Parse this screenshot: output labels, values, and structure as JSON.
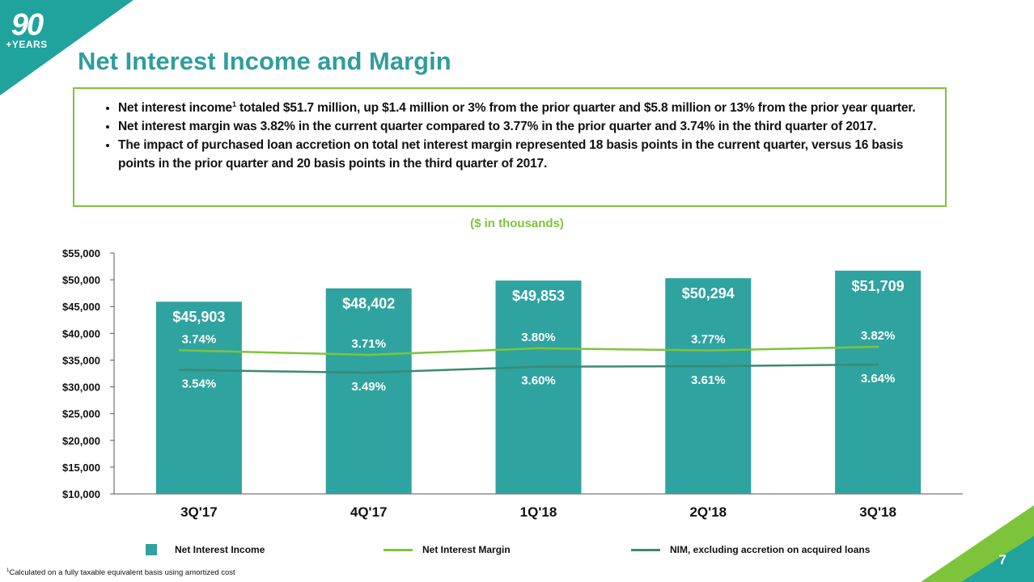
{
  "logo": {
    "number": "90",
    "text": "+YEARS"
  },
  "title": "Net Interest Income and Margin",
  "bullets": [
    {
      "pre": "Net interest income",
      "sup": "1",
      "post": " totaled $51.7 million, up $1.4 million or 3% from the prior quarter and $5.8 million or 13% from the prior year quarter."
    },
    {
      "pre": "Net interest margin was 3.82% in the current quarter compared to 3.77% in the prior quarter and 3.74% in the third quarter of 2017.",
      "sup": "",
      "post": ""
    },
    {
      "pre": "The impact of purchased loan accretion on total net interest margin represented 18 basis points in the current quarter, versus 16 basis points in the prior quarter and 20 basis points in the third quarter of 2017.",
      "sup": "",
      "post": ""
    }
  ],
  "units_note": "($ in thousands)",
  "chart_data": {
    "type": "bar",
    "categories": [
      "3Q'17",
      "4Q'17",
      "1Q'18",
      "2Q'18",
      "3Q'18"
    ],
    "ylim": [
      10000,
      55000
    ],
    "y_ticks": [
      {
        "value": 10000,
        "label": "$10,000"
      },
      {
        "value": 15000,
        "label": "$15,000"
      },
      {
        "value": 20000,
        "label": "$20,000"
      },
      {
        "value": 25000,
        "label": "$25,000"
      },
      {
        "value": 30000,
        "label": "$30,000"
      },
      {
        "value": 35000,
        "label": "$35,000"
      },
      {
        "value": 40000,
        "label": "$40,000"
      },
      {
        "value": 45000,
        "label": "$45,000"
      },
      {
        "value": 50000,
        "label": "$50,000"
      },
      {
        "value": 55000,
        "label": "$55,000"
      }
    ],
    "bars": {
      "name": "Net Interest Income",
      "color": "#2fa3a0",
      "values": [
        45903,
        48402,
        49853,
        50294,
        51709
      ],
      "labels": [
        "$45,903",
        "$48,402",
        "$49,853",
        "$50,294",
        "$51,709"
      ]
    },
    "lines": [
      {
        "name": "Net Interest Margin",
        "color": "#7dc43a",
        "values": [
          3.74,
          3.71,
          3.8,
          3.77,
          3.82
        ],
        "labels": [
          "3.74%",
          "3.71%",
          "3.80%",
          "3.77%",
          "3.82%"
        ]
      },
      {
        "name": "NIM, excluding accretion on acquired loans",
        "color": "#3a8a74",
        "values": [
          3.54,
          3.49,
          3.6,
          3.61,
          3.64
        ],
        "labels": [
          "3.54%",
          "3.49%",
          "3.60%",
          "3.61%",
          "3.64%"
        ]
      }
    ],
    "legend": "bottom"
  },
  "footnote": {
    "sup": "1",
    "text": "Calculated on a fully taxable equivalent basis using amortized cost"
  },
  "page_number": "7",
  "colors": {
    "teal": "#2fa3a0",
    "title": "#2f9d9d",
    "green": "#7dc43a",
    "dark_green": "#3a8a74",
    "corner": "#1fa39c"
  }
}
